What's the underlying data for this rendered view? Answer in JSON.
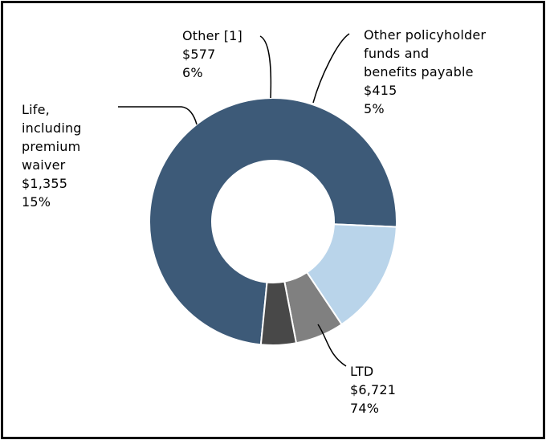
{
  "chart_data": {
    "type": "pie",
    "donut": true,
    "legend": "none",
    "slices": [
      {
        "name_lines": [
          "LTD"
        ],
        "value": "$6,721",
        "percent": "74%",
        "amount": 6721,
        "color": "#3d5a78"
      },
      {
        "name_lines": [
          "Life,",
          "including",
          "premium",
          "waiver"
        ],
        "value": "$1,355",
        "percent": "15%",
        "amount": 1355,
        "color": "#b9d4ea"
      },
      {
        "name_lines": [
          "Other [1]"
        ],
        "value": "$577",
        "percent": "6%",
        "amount": 577,
        "color": "#808080"
      },
      {
        "name_lines": [
          "Other policyholder",
          "funds and",
          "benefits payable"
        ],
        "value": "$415",
        "percent": "5%",
        "amount": 415,
        "color": "#484848"
      }
    ]
  }
}
